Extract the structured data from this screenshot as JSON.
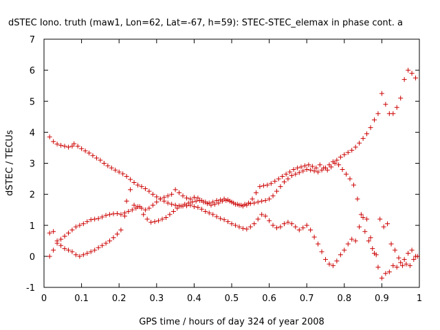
{
  "chart_data": {
    "type": "scatter",
    "title": "dSTEC Iono. truth (maw1, Lon=62, Lat=-67, h=59): STEC-STEC_elemax in phase cont. a",
    "xlabel": "GPS time / hours of day 324 of year 2008",
    "ylabel": "dSTEC  / TECUs",
    "xlim": [
      0,
      1
    ],
    "ylim": [
      -1,
      7
    ],
    "xticks": [
      0,
      0.1,
      0.2,
      0.3,
      0.4,
      0.5,
      0.6,
      0.7,
      0.8,
      0.9,
      1
    ],
    "xtick_labels": [
      "0",
      "0.1",
      "0.2",
      "0.3",
      "0.4",
      "0.5",
      "0.6",
      "0.7",
      "0.8",
      "0.9",
      "1"
    ],
    "yticks": [
      -1,
      0,
      1,
      2,
      3,
      4,
      5,
      6,
      7
    ],
    "ytick_labels": [
      "-1",
      "0",
      "1",
      "2",
      "3",
      "4",
      "5",
      "6",
      "7"
    ],
    "grid": false,
    "marker": "plus",
    "point_color": "#cc0000",
    "axis_color": "#000000",
    "series": [
      {
        "points": [
          [
            0.015,
            3.85
          ],
          [
            0.025,
            3.7
          ],
          [
            0.035,
            3.62
          ],
          [
            0.045,
            3.58
          ],
          [
            0.055,
            3.55
          ],
          [
            0.065,
            3.52
          ],
          [
            0.075,
            3.55
          ],
          [
            0.08,
            3.63
          ],
          [
            0.09,
            3.55
          ],
          [
            0.1,
            3.47
          ],
          [
            0.11,
            3.4
          ],
          [
            0.12,
            3.33
          ],
          [
            0.13,
            3.25
          ],
          [
            0.14,
            3.17
          ],
          [
            0.15,
            3.1
          ],
          [
            0.16,
            3.0
          ],
          [
            0.17,
            2.92
          ],
          [
            0.18,
            2.85
          ],
          [
            0.19,
            2.78
          ],
          [
            0.2,
            2.72
          ],
          [
            0.21,
            2.66
          ],
          [
            0.22,
            2.58
          ],
          [
            0.23,
            2.48
          ],
          [
            0.24,
            2.38
          ],
          [
            0.25,
            2.3
          ],
          [
            0.26,
            2.25
          ],
          [
            0.27,
            2.18
          ],
          [
            0.28,
            2.1
          ],
          [
            0.29,
            2.0
          ],
          [
            0.3,
            1.92
          ],
          [
            0.31,
            1.85
          ],
          [
            0.32,
            1.78
          ],
          [
            0.33,
            1.72
          ],
          [
            0.34,
            1.68
          ],
          [
            0.35,
            1.65
          ],
          [
            0.36,
            1.63
          ],
          [
            0.37,
            1.62
          ],
          [
            0.38,
            1.63
          ],
          [
            0.39,
            1.65
          ],
          [
            0.4,
            1.6
          ],
          [
            0.41,
            1.58
          ],
          [
            0.42,
            1.52
          ],
          [
            0.43,
            1.45
          ],
          [
            0.44,
            1.4
          ],
          [
            0.45,
            1.35
          ],
          [
            0.46,
            1.28
          ],
          [
            0.47,
            1.22
          ],
          [
            0.48,
            1.18
          ],
          [
            0.49,
            1.12
          ],
          [
            0.5,
            1.05
          ],
          [
            0.51,
            1.0
          ],
          [
            0.52,
            0.95
          ],
          [
            0.53,
            0.9
          ],
          [
            0.54,
            0.88
          ],
          [
            0.55,
            0.95
          ],
          [
            0.56,
            1.05
          ],
          [
            0.57,
            1.2
          ],
          [
            0.58,
            1.35
          ],
          [
            0.59,
            1.3
          ],
          [
            0.6,
            1.15
          ],
          [
            0.61,
            1.0
          ],
          [
            0.62,
            0.92
          ],
          [
            0.63,
            0.95
          ],
          [
            0.64,
            1.05
          ],
          [
            0.65,
            1.1
          ],
          [
            0.66,
            1.05
          ],
          [
            0.67,
            0.95
          ],
          [
            0.68,
            0.85
          ],
          [
            0.69,
            0.92
          ],
          [
            0.7,
            1.0
          ],
          [
            0.71,
            0.85
          ],
          [
            0.72,
            0.62
          ],
          [
            0.73,
            0.4
          ],
          [
            0.74,
            0.15
          ],
          [
            0.75,
            -0.1
          ],
          [
            0.76,
            -0.25
          ],
          [
            0.77,
            -0.3
          ],
          [
            0.78,
            -0.15
          ],
          [
            0.79,
            0.05
          ],
          [
            0.8,
            0.2
          ],
          [
            0.81,
            0.4
          ],
          [
            0.82,
            0.55
          ],
          [
            0.83,
            0.5
          ],
          [
            0.84,
            0.95
          ],
          [
            0.85,
            1.25
          ],
          [
            0.86,
            1.2
          ],
          [
            0.87,
            0.6
          ],
          [
            0.88,
            0.1
          ],
          [
            0.89,
            -0.35
          ],
          [
            0.9,
            -0.7
          ],
          [
            0.91,
            -0.55
          ],
          [
            0.92,
            -0.5
          ],
          [
            0.93,
            -0.3
          ],
          [
            0.94,
            -0.35
          ],
          [
            0.95,
            -0.2
          ],
          [
            0.96,
            -0.1
          ],
          [
            0.97,
            0.1
          ],
          [
            0.98,
            0.2
          ],
          [
            0.99,
            0.0
          ]
        ]
      },
      {
        "points": [
          [
            0.015,
            0.75
          ],
          [
            0.025,
            0.8
          ],
          [
            0.035,
            0.5
          ],
          [
            0.045,
            0.35
          ],
          [
            0.055,
            0.25
          ],
          [
            0.065,
            0.2
          ],
          [
            0.075,
            0.15
          ],
          [
            0.085,
            0.05
          ],
          [
            0.095,
            0.0
          ],
          [
            0.105,
            0.05
          ],
          [
            0.115,
            0.1
          ],
          [
            0.125,
            0.15
          ],
          [
            0.135,
            0.2
          ],
          [
            0.145,
            0.28
          ],
          [
            0.155,
            0.35
          ],
          [
            0.165,
            0.42
          ],
          [
            0.175,
            0.5
          ],
          [
            0.185,
            0.6
          ],
          [
            0.195,
            0.72
          ],
          [
            0.205,
            0.85
          ],
          [
            0.215,
            1.3
          ],
          [
            0.22,
            1.78
          ],
          [
            0.23,
            2.15
          ],
          [
            0.24,
            1.65
          ],
          [
            0.25,
            1.6
          ],
          [
            0.26,
            1.55
          ],
          [
            0.27,
            1.5
          ],
          [
            0.28,
            1.55
          ],
          [
            0.29,
            1.65
          ],
          [
            0.3,
            1.75
          ],
          [
            0.31,
            1.85
          ],
          [
            0.32,
            1.9
          ],
          [
            0.33,
            1.95
          ],
          [
            0.34,
            2.0
          ],
          [
            0.35,
            2.15
          ],
          [
            0.36,
            2.05
          ],
          [
            0.37,
            1.95
          ],
          [
            0.38,
            1.88
          ],
          [
            0.39,
            1.85
          ],
          [
            0.4,
            1.9
          ],
          [
            0.41,
            1.88
          ],
          [
            0.42,
            1.8
          ],
          [
            0.43,
            1.75
          ],
          [
            0.44,
            1.72
          ],
          [
            0.45,
            1.75
          ],
          [
            0.46,
            1.8
          ],
          [
            0.47,
            1.82
          ],
          [
            0.48,
            1.85
          ],
          [
            0.49,
            1.82
          ],
          [
            0.5,
            1.75
          ],
          [
            0.51,
            1.68
          ],
          [
            0.52,
            1.65
          ],
          [
            0.53,
            1.62
          ],
          [
            0.54,
            1.65
          ],
          [
            0.55,
            1.7
          ],
          [
            0.56,
            1.72
          ],
          [
            0.57,
            1.75
          ],
          [
            0.58,
            1.78
          ],
          [
            0.59,
            1.8
          ],
          [
            0.6,
            1.85
          ],
          [
            0.61,
            1.95
          ],
          [
            0.62,
            2.1
          ],
          [
            0.63,
            2.25
          ],
          [
            0.64,
            2.4
          ],
          [
            0.65,
            2.5
          ],
          [
            0.66,
            2.6
          ],
          [
            0.67,
            2.65
          ],
          [
            0.68,
            2.7
          ],
          [
            0.69,
            2.75
          ],
          [
            0.7,
            2.8
          ],
          [
            0.71,
            2.78
          ],
          [
            0.72,
            2.75
          ],
          [
            0.73,
            2.72
          ],
          [
            0.74,
            2.78
          ],
          [
            0.75,
            2.85
          ],
          [
            0.76,
            2.95
          ],
          [
            0.77,
            3.05
          ],
          [
            0.78,
            3.1
          ],
          [
            0.79,
            3.2
          ],
          [
            0.8,
            3.28
          ],
          [
            0.81,
            3.35
          ],
          [
            0.82,
            3.42
          ],
          [
            0.83,
            3.52
          ],
          [
            0.84,
            3.65
          ],
          [
            0.85,
            3.8
          ],
          [
            0.86,
            3.95
          ],
          [
            0.87,
            4.15
          ],
          [
            0.88,
            4.4
          ],
          [
            0.89,
            4.6
          ],
          [
            0.9,
            5.25
          ],
          [
            0.91,
            4.9
          ],
          [
            0.92,
            4.6
          ],
          [
            0.93,
            4.6
          ],
          [
            0.94,
            4.8
          ],
          [
            0.95,
            5.1
          ],
          [
            0.96,
            5.7
          ],
          [
            0.97,
            6.0
          ],
          [
            0.98,
            5.9
          ],
          [
            0.99,
            5.75
          ]
        ]
      },
      {
        "points": [
          [
            0.015,
            0.0
          ],
          [
            0.025,
            0.2
          ],
          [
            0.035,
            0.42
          ],
          [
            0.045,
            0.55
          ],
          [
            0.055,
            0.65
          ],
          [
            0.065,
            0.75
          ],
          [
            0.075,
            0.85
          ],
          [
            0.085,
            0.95
          ],
          [
            0.095,
            1.0
          ],
          [
            0.105,
            1.05
          ],
          [
            0.115,
            1.12
          ],
          [
            0.125,
            1.18
          ],
          [
            0.135,
            1.2
          ],
          [
            0.145,
            1.22
          ],
          [
            0.155,
            1.27
          ],
          [
            0.165,
            1.32
          ],
          [
            0.175,
            1.35
          ],
          [
            0.185,
            1.37
          ],
          [
            0.195,
            1.38
          ],
          [
            0.205,
            1.35
          ],
          [
            0.215,
            1.4
          ],
          [
            0.225,
            1.45
          ],
          [
            0.235,
            1.5
          ],
          [
            0.245,
            1.55
          ],
          [
            0.255,
            1.6
          ],
          [
            0.265,
            1.35
          ],
          [
            0.275,
            1.2
          ],
          [
            0.285,
            1.1
          ],
          [
            0.295,
            1.12
          ],
          [
            0.305,
            1.15
          ],
          [
            0.315,
            1.2
          ],
          [
            0.325,
            1.25
          ],
          [
            0.335,
            1.35
          ],
          [
            0.345,
            1.45
          ],
          [
            0.355,
            1.55
          ],
          [
            0.365,
            1.62
          ],
          [
            0.375,
            1.68
          ],
          [
            0.385,
            1.72
          ],
          [
            0.395,
            1.75
          ],
          [
            0.405,
            1.78
          ],
          [
            0.415,
            1.8
          ],
          [
            0.425,
            1.75
          ],
          [
            0.435,
            1.7
          ],
          [
            0.445,
            1.65
          ],
          [
            0.455,
            1.68
          ],
          [
            0.465,
            1.72
          ],
          [
            0.475,
            1.78
          ],
          [
            0.485,
            1.8
          ],
          [
            0.495,
            1.78
          ],
          [
            0.505,
            1.72
          ],
          [
            0.515,
            1.68
          ],
          [
            0.525,
            1.65
          ],
          [
            0.535,
            1.68
          ],
          [
            0.545,
            1.72
          ],
          [
            0.555,
            1.85
          ],
          [
            0.565,
            2.05
          ],
          [
            0.575,
            2.25
          ],
          [
            0.585,
            2.28
          ],
          [
            0.595,
            2.3
          ],
          [
            0.605,
            2.35
          ],
          [
            0.615,
            2.42
          ],
          [
            0.625,
            2.5
          ],
          [
            0.635,
            2.58
          ],
          [
            0.645,
            2.65
          ],
          [
            0.655,
            2.72
          ],
          [
            0.665,
            2.8
          ],
          [
            0.675,
            2.85
          ],
          [
            0.685,
            2.88
          ],
          [
            0.695,
            2.92
          ],
          [
            0.705,
            2.95
          ],
          [
            0.715,
            2.9
          ],
          [
            0.725,
            2.85
          ],
          [
            0.735,
            2.95
          ],
          [
            0.745,
            2.85
          ],
          [
            0.755,
            2.78
          ],
          [
            0.765,
            2.88
          ],
          [
            0.775,
            3.0
          ],
          [
            0.785,
            2.95
          ],
          [
            0.795,
            2.8
          ],
          [
            0.805,
            2.65
          ],
          [
            0.815,
            2.5
          ],
          [
            0.825,
            2.3
          ],
          [
            0.835,
            1.85
          ],
          [
            0.845,
            1.35
          ],
          [
            0.855,
            0.8
          ],
          [
            0.865,
            0.5
          ],
          [
            0.875,
            0.25
          ],
          [
            0.885,
            0.05
          ],
          [
            0.895,
            1.2
          ],
          [
            0.905,
            0.95
          ],
          [
            0.915,
            1.05
          ],
          [
            0.925,
            0.4
          ],
          [
            0.935,
            0.2
          ],
          [
            0.945,
            -0.05
          ],
          [
            0.955,
            -0.3
          ],
          [
            0.965,
            -0.25
          ],
          [
            0.975,
            -0.3
          ],
          [
            0.985,
            -0.1
          ],
          [
            0.995,
            0.0
          ]
        ]
      }
    ]
  }
}
